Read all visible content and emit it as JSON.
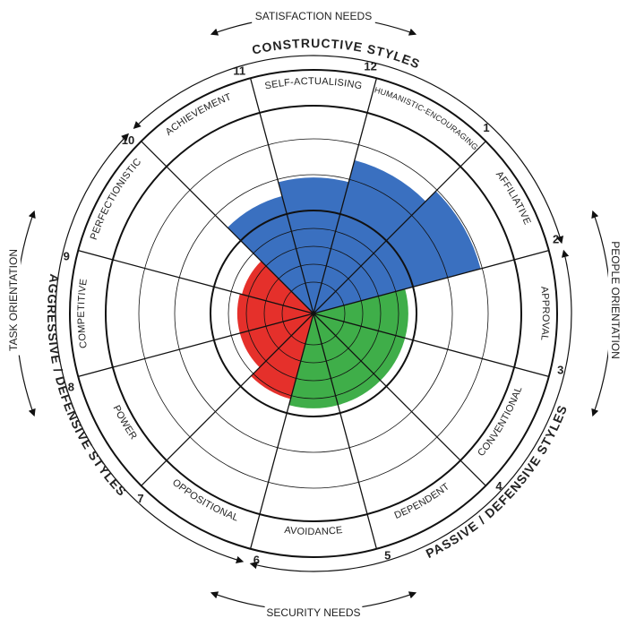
{
  "colors": {
    "constructive": "#3a70c0",
    "aggressive": "#e5302b",
    "passive": "#3fae49",
    "line": "#111111"
  },
  "orientation": {
    "top": "SATISFACTION NEEDS",
    "bottom": "SECURITY NEEDS",
    "left": "TASK ORIENTATION",
    "right": "PEOPLE ORIENTATION"
  },
  "style_groups": {
    "constructive": "CONSTRUCTIVE STYLES",
    "aggressive": "AGGRESSIVE / DEFENSIVE STYLES",
    "passive": "PASSIVE / DEFENSIVE STYLES"
  },
  "segments": [
    {
      "number": "1",
      "label": "HUMANISTIC-ENCOURAGING",
      "group": "constructive",
      "level": 0.77
    },
    {
      "number": "2",
      "label": "AFFILIATIVE",
      "group": "constructive",
      "level": 0.84
    },
    {
      "number": "3",
      "label": "APPROVAL",
      "group": "passive",
      "level": 0.46
    },
    {
      "number": "4",
      "label": "CONVENTIONAL",
      "group": "passive",
      "level": 0.46
    },
    {
      "number": "5",
      "label": "DEPENDENT",
      "group": "passive",
      "level": 0.46
    },
    {
      "number": "6",
      "label": "AVOIDANCE",
      "group": "passive",
      "level": 0.46
    },
    {
      "number": "7",
      "label": "OPPOSITIONAL",
      "group": "aggressive",
      "level": 0.43
    },
    {
      "number": "8",
      "label": "POWER",
      "group": "aggressive",
      "level": 0.37
    },
    {
      "number": "9",
      "label": "COMPETITIVE",
      "group": "aggressive",
      "level": 0.37
    },
    {
      "number": "10",
      "label": "PERFECTIONISTIC",
      "group": "aggressive",
      "level": 0.36
    },
    {
      "number": "11",
      "label": "ACHIEVEMENT",
      "group": "constructive",
      "level": 0.59
    },
    {
      "number": "12",
      "label": "SELF-ACTUALISING",
      "group": "constructive",
      "level": 0.66
    }
  ]
}
